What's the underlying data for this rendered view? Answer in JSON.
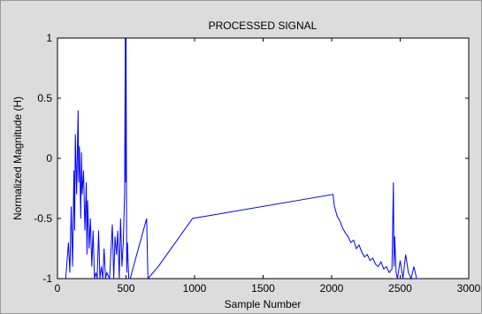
{
  "chart_data": {
    "type": "line",
    "title": "PROCESSED SIGNAL",
    "xlabel": "Sample Number",
    "ylabel": "Normalized Magnitude (H)",
    "xlim": [
      0,
      3000
    ],
    "ylim": [
      -1,
      1
    ],
    "xticks": [
      "0",
      "500",
      "1000",
      "1500",
      "2000",
      "2500",
      "3000"
    ],
    "yticks": [
      "-1",
      "-0.5",
      "0",
      "0.5",
      "1"
    ],
    "grid": false,
    "legend": "none",
    "line_color": "#0000ff",
    "series": [
      {
        "x": [
          60,
          80,
          90,
          100,
          110,
          120,
          125,
          130,
          140,
          150,
          155,
          160,
          170,
          175,
          180,
          190,
          200,
          210,
          215,
          220,
          230,
          240,
          250,
          260,
          270,
          280,
          290,
          300,
          310,
          320,
          330,
          340,
          350,
          360,
          380,
          400,
          410,
          420,
          430,
          440,
          450,
          460,
          470,
          480,
          490,
          495,
          498,
          500,
          505,
          510,
          520,
          530,
          650,
          660,
          735,
          985,
          2010,
          2020,
          2040,
          2060,
          2080,
          2100,
          2120,
          2140,
          2160,
          2180,
          2200,
          2220,
          2240,
          2260,
          2280,
          2300,
          2320,
          2340,
          2360,
          2380,
          2400,
          2420,
          2440,
          2450,
          2455,
          2460,
          2470,
          2480,
          2500,
          2520,
          2540,
          2560,
          2580,
          2600,
          2620,
          2640
        ],
        "y": [
          -1,
          -0.7,
          -0.95,
          -0.4,
          -0.9,
          -0.1,
          -0.6,
          0.2,
          -0.3,
          0.4,
          -0.2,
          0.1,
          -0.5,
          0.05,
          -0.3,
          -0.1,
          -0.6,
          -0.2,
          -0.8,
          -0.35,
          -0.75,
          -0.5,
          -0.9,
          -0.6,
          -1,
          -0.95,
          -1,
          -0.6,
          -1,
          -0.9,
          -1,
          -0.75,
          -1,
          -0.95,
          -1,
          -0.55,
          -1,
          -0.65,
          -0.8,
          -0.6,
          -1,
          -0.5,
          -0.9,
          -0.7,
          -0.3,
          1,
          -0.2,
          1,
          -0.95,
          -0.7,
          -1,
          -1,
          -0.5,
          -1,
          -0.9,
          -0.5,
          -0.3,
          -0.4,
          -0.48,
          -0.52,
          -0.58,
          -0.62,
          -0.65,
          -0.7,
          -0.68,
          -0.75,
          -0.72,
          -0.78,
          -0.82,
          -0.8,
          -0.85,
          -0.83,
          -0.88,
          -0.9,
          -0.86,
          -0.92,
          -0.9,
          -0.95,
          -0.92,
          -0.2,
          -0.9,
          -0.65,
          -0.95,
          -1,
          -0.85,
          -1,
          -0.8,
          -0.95,
          -1,
          -0.9,
          -1,
          -1
        ]
      }
    ]
  }
}
